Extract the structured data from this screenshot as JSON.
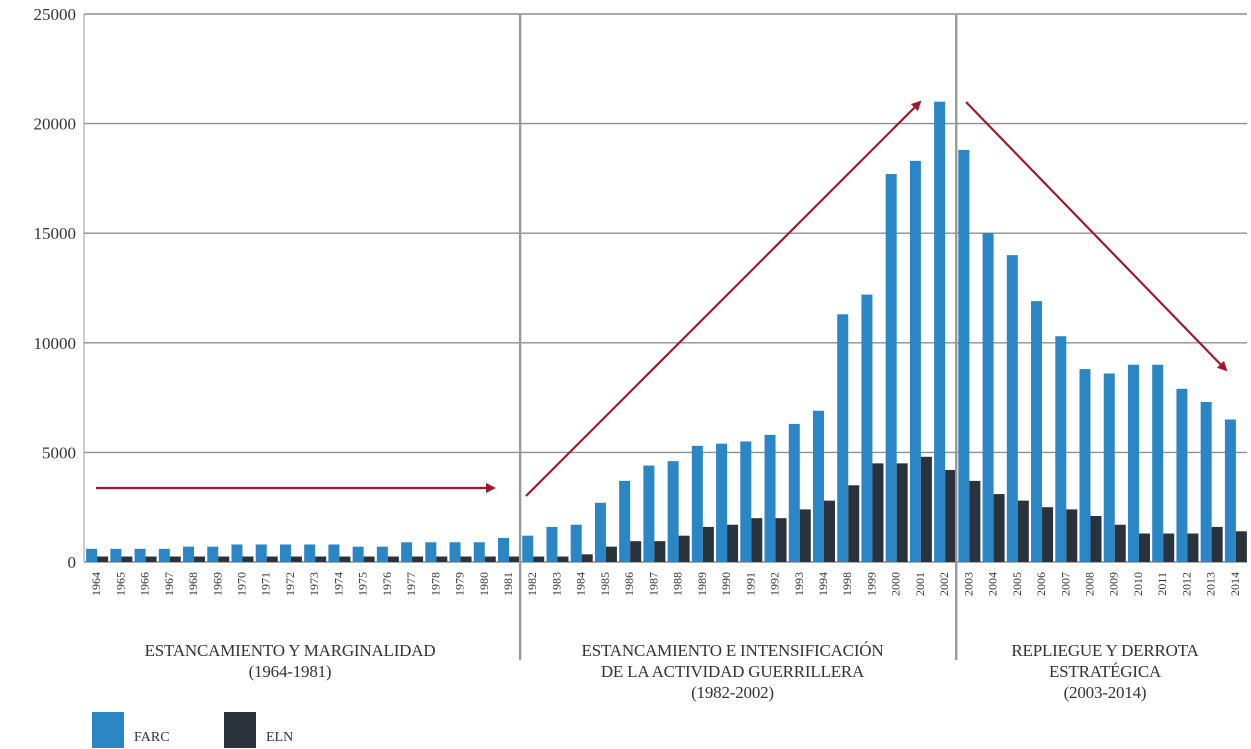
{
  "chart_data": {
    "type": "bar",
    "categories": [
      "1964",
      "1965",
      "1966",
      "1967",
      "1968",
      "1969",
      "1970",
      "1971",
      "1972",
      "1973",
      "1974",
      "1975",
      "1976",
      "1977",
      "1978",
      "1979",
      "1980",
      "1981",
      "1982",
      "1983",
      "1984",
      "1985",
      "1986",
      "1987",
      "1988",
      "1989",
      "1990",
      "1991",
      "1992",
      "1993",
      "1994",
      "1998",
      "1999",
      "2000",
      "2001",
      "2002",
      "2003",
      "2004",
      "2005",
      "2006",
      "2007",
      "2008",
      "2009",
      "2010",
      "2011",
      "2012",
      "2013",
      "2014"
    ],
    "series": [
      {
        "name": "FARC",
        "color": "#2b86c6",
        "values": [
          600,
          600,
          600,
          600,
          700,
          700,
          800,
          800,
          800,
          800,
          800,
          700,
          700,
          900,
          900,
          900,
          900,
          1100,
          1200,
          1600,
          1700,
          2700,
          3700,
          4400,
          4600,
          5300,
          5400,
          5500,
          5800,
          6300,
          6900,
          11300,
          12200,
          17700,
          18300,
          21000,
          18800,
          15000,
          14000,
          11900,
          10300,
          8800,
          8600,
          9000,
          9000,
          7900,
          7300,
          6500
        ]
      },
      {
        "name": "ELN",
        "color": "#2a333c",
        "values": [
          250,
          250,
          250,
          250,
          250,
          250,
          250,
          250,
          250,
          250,
          250,
          250,
          250,
          250,
          250,
          250,
          250,
          250,
          250,
          250,
          350,
          700,
          950,
          950,
          1200,
          1600,
          1700,
          2000,
          2000,
          2400,
          2800,
          3500,
          4500,
          4500,
          4800,
          4200,
          3700,
          3100,
          2800,
          2500,
          2400,
          2100,
          1700,
          1300,
          1300,
          1300,
          1600,
          1400
        ]
      }
    ],
    "ylim": [
      0,
      25000
    ],
    "yticks": [
      0,
      5000,
      10000,
      15000,
      20000,
      25000
    ],
    "grid": true,
    "dividers_after": [
      "1981",
      "2002"
    ],
    "periods": [
      {
        "line1": "ESTANCAMIENTO Y MARGINALIDAD",
        "line2": "(1964-1981)"
      },
      {
        "line1": "ESTANCAMIENTO E INTENSIFICACIÓN",
        "line2": "DE LA ACTIVIDAD GUERRILLERA",
        "line3": "(1982-2002)"
      },
      {
        "line1": "REPLIEGUE Y DERROTA",
        "line2": "ESTRATÉGICA",
        "line3": "(2003-2014)"
      }
    ],
    "legend": [
      {
        "label": "FARC",
        "color": "#2b86c6"
      },
      {
        "label": "ELN",
        "color": "#2a333c"
      }
    ],
    "arrow_color": "#9b1b2e",
    "grid_color": "#8f8f8f"
  }
}
